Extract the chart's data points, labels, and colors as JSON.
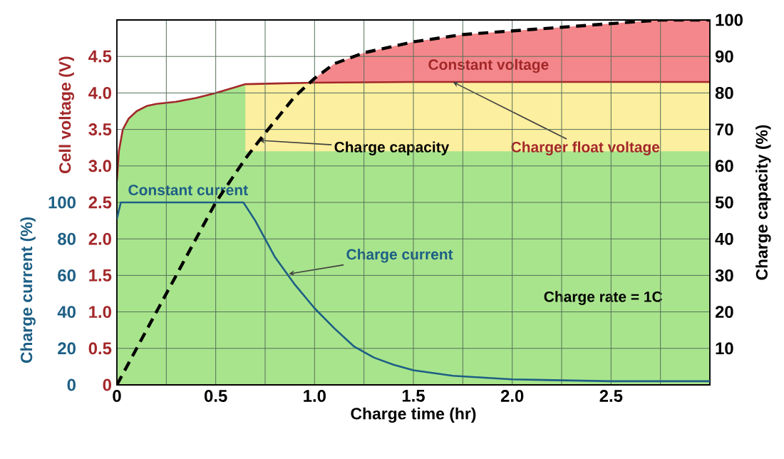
{
  "chart_data": {
    "type": "line",
    "xlabel": "Charge time (hr)",
    "ylabel": "Cell voltage (V)",
    "y2label": "Charge capacity (%)",
    "y3label": "Charge current (%)",
    "xlim": [
      0,
      3
    ],
    "ylim": [
      0,
      5
    ],
    "y2lim": [
      0,
      100
    ],
    "y3lim": [
      0,
      200
    ],
    "xticks": [
      0,
      {
        "value": 0.25,
        "label": null
      },
      0.5,
      {
        "value": 0.75,
        "label": null
      },
      {
        "value": 1,
        "label": "1.0"
      },
      {
        "value": 1.25,
        "label": null
      },
      1.5,
      {
        "value": 1.75,
        "label": null
      },
      {
        "value": 2,
        "label": "2.0"
      },
      {
        "value": 2.25,
        "label": null
      },
      2.5,
      {
        "value": 2.75,
        "label": null
      },
      {
        "value": 3,
        "label": null
      }
    ],
    "yticks": [
      0,
      0.5,
      {
        "value": 1,
        "label": "1.0"
      },
      1.5,
      {
        "value": 2,
        "label": "2.0"
      },
      2.5,
      {
        "value": 3,
        "label": "3.0"
      },
      3.5,
      {
        "value": 4,
        "label": "4.0"
      },
      4.5,
      {
        "value": 5,
        "label": null
      }
    ],
    "y2ticks": [
      10,
      20,
      30,
      40,
      50,
      60,
      70,
      80,
      90,
      100
    ],
    "y3ticks": [
      0,
      20,
      40,
      60,
      80,
      100
    ],
    "grid": true,
    "series": [
      {
        "axis": "y",
        "color": "#a3282a",
        "x": [
          0,
          0.01,
          0.03,
          0.06,
          0.1,
          0.15,
          0.2,
          0.3,
          0.4,
          0.5,
          0.6,
          0.65,
          0.8,
          1.0,
          1.5,
          2.0,
          2.5,
          3.0
        ],
        "values": [
          2.8,
          3.2,
          3.5,
          3.65,
          3.75,
          3.82,
          3.85,
          3.88,
          3.93,
          4.0,
          4.08,
          4.12,
          4.13,
          4.14,
          4.15,
          4.15,
          4.15,
          4.15
        ]
      },
      {
        "axis": "y3",
        "color": "#1d5f85",
        "x": [
          0,
          0.02,
          0.64,
          0.7,
          0.8,
          0.9,
          1.0,
          1.1,
          1.2,
          1.3,
          1.4,
          1.5,
          1.7,
          2.0,
          2.5,
          3.0
        ],
        "values": [
          91,
          100,
          100,
          90,
          70,
          55,
          42,
          31,
          21,
          15,
          11,
          8,
          5,
          3,
          2,
          2
        ]
      },
      {
        "axis": "y2",
        "color": "#000000",
        "line_style": "dashed",
        "x": [
          0,
          0.25,
          0.5,
          0.65,
          0.75,
          0.9,
          1.0,
          1.1,
          1.25,
          1.5,
          1.75,
          2.0,
          2.25,
          2.5,
          2.75,
          3.0
        ],
        "values": [
          0,
          25,
          50,
          62,
          69,
          79,
          84,
          88,
          91,
          94,
          96,
          97,
          98,
          99,
          100,
          100
        ]
      }
    ],
    "bands": [
      {
        "axis": "y",
        "from": 0,
        "to": 4.15,
        "color": "#a8e48c"
      },
      {
        "axis": "y",
        "from": 3.2,
        "to": 4.15,
        "color": "#fcef9f"
      },
      {
        "axis": "y",
        "from": 4.15,
        "to": 5,
        "color": "#f4878b"
      }
    ],
    "annotations": [
      "Constant current",
      "Constant voltage",
      {
        "text": "Charge capacity",
        "x": 0.72,
        "y": 3.35
      },
      {
        "text": "Charger float voltage",
        "x": 1.7,
        "y": 4.15
      },
      {
        "text": "Charge current",
        "x": 0.87,
        "y": 1.52
      },
      "Charge rate = 1C"
    ]
  }
}
